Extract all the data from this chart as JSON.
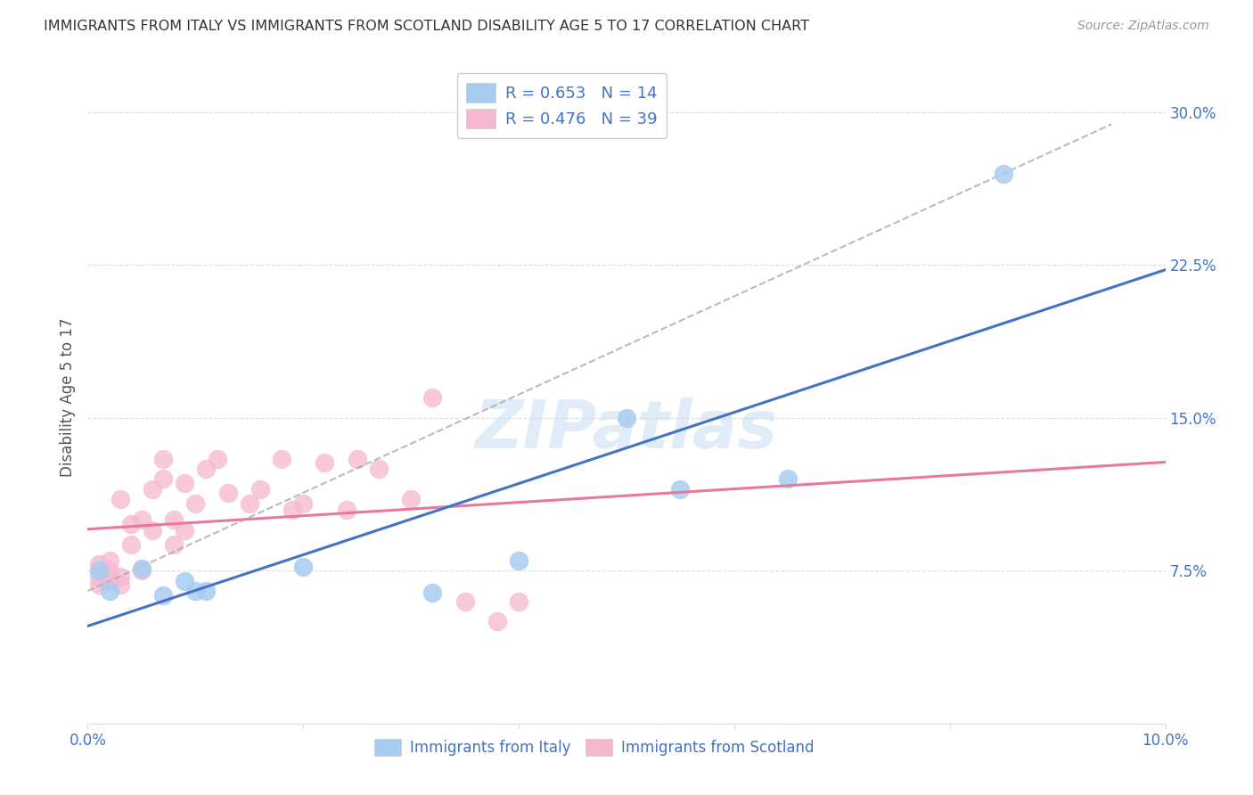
{
  "title": "IMMIGRANTS FROM ITALY VS IMMIGRANTS FROM SCOTLAND DISABILITY AGE 5 TO 17 CORRELATION CHART",
  "source": "Source: ZipAtlas.com",
  "ylabel": "Disability Age 5 to 17",
  "xlim": [
    0.0,
    0.1
  ],
  "ylim": [
    0.0,
    0.32
  ],
  "y_ticks_right": [
    0.075,
    0.15,
    0.225,
    0.3
  ],
  "y_tick_labels_right": [
    "7.5%",
    "15.0%",
    "22.5%",
    "30.0%"
  ],
  "italy_color": "#A8CCF0",
  "scotland_color": "#F5B8CF",
  "italy_line_color": "#4472C4",
  "scotland_line_color": "#E8789A",
  "R_italy": 0.653,
  "N_italy": 14,
  "R_scotland": 0.476,
  "N_scotland": 39,
  "watermark": "ZIPatlas",
  "italy_x": [
    0.001,
    0.002,
    0.005,
    0.007,
    0.009,
    0.01,
    0.011,
    0.02,
    0.032,
    0.04,
    0.05,
    0.055,
    0.065,
    0.085
  ],
  "italy_y": [
    0.075,
    0.065,
    0.076,
    0.063,
    0.07,
    0.065,
    0.065,
    0.077,
    0.064,
    0.08,
    0.15,
    0.115,
    0.12,
    0.27
  ],
  "scotland_x": [
    0.001,
    0.001,
    0.001,
    0.002,
    0.002,
    0.002,
    0.003,
    0.003,
    0.003,
    0.004,
    0.004,
    0.005,
    0.005,
    0.006,
    0.006,
    0.007,
    0.007,
    0.008,
    0.008,
    0.009,
    0.009,
    0.01,
    0.011,
    0.012,
    0.013,
    0.015,
    0.016,
    0.018,
    0.019,
    0.02,
    0.022,
    0.024,
    0.025,
    0.027,
    0.03,
    0.032,
    0.035,
    0.038,
    0.04
  ],
  "scotland_y": [
    0.068,
    0.072,
    0.078,
    0.07,
    0.075,
    0.08,
    0.068,
    0.072,
    0.11,
    0.088,
    0.098,
    0.075,
    0.1,
    0.115,
    0.095,
    0.12,
    0.13,
    0.088,
    0.1,
    0.118,
    0.095,
    0.108,
    0.125,
    0.13,
    0.113,
    0.108,
    0.115,
    0.13,
    0.105,
    0.108,
    0.128,
    0.105,
    0.13,
    0.125,
    0.11,
    0.16,
    0.06,
    0.05,
    0.06
  ]
}
